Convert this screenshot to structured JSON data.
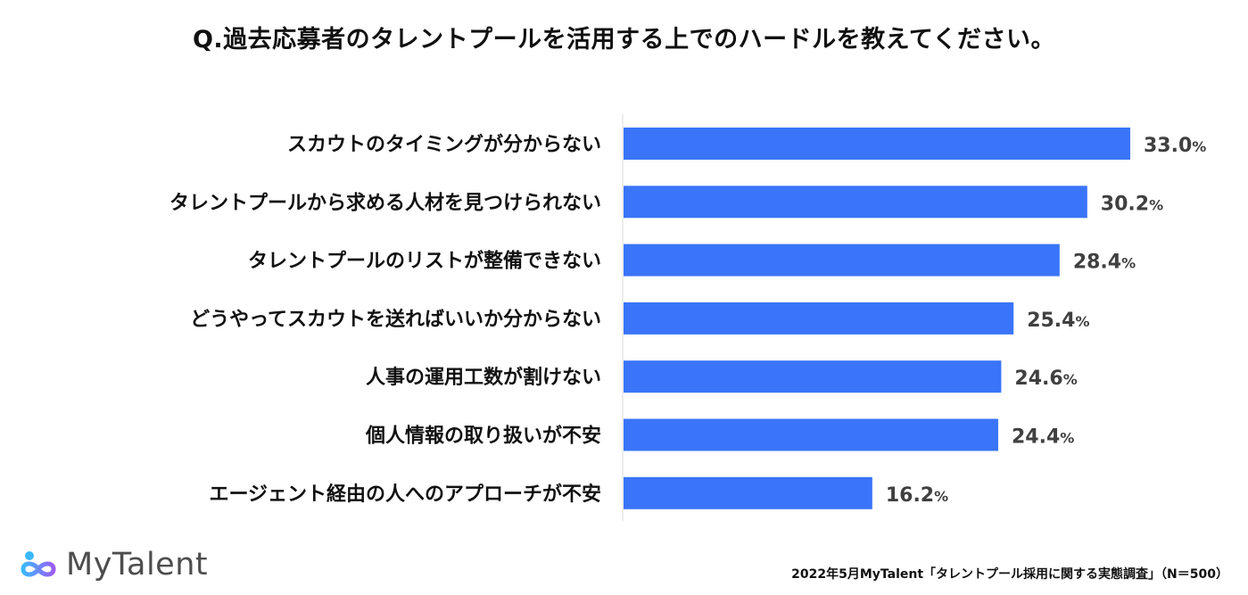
{
  "title": "Q.過去応募者のタレントプールを活用する上でのハードルを教えてください。",
  "chart_data": {
    "type": "bar",
    "orientation": "horizontal",
    "categories": [
      "スカウトのタイミングが分からない",
      "タレントプールから求める人材を見つけられない",
      "タレントプールのリストが整備できない",
      "どうやってスカウトを送ればいいか分からない",
      "人事の運用工数が割けない",
      "個人情報の取り扱いが不安",
      "エージェント経由の人へのアプローチが不安"
    ],
    "values": [
      33.0,
      30.2,
      28.4,
      25.4,
      24.6,
      24.4,
      16.2
    ],
    "value_labels": [
      "33.0",
      "30.2",
      "28.4",
      "25.4",
      "24.6",
      "24.4",
      "16.2"
    ],
    "unit": "%",
    "xlim": [
      0,
      40
    ],
    "grid": false,
    "legend": "none",
    "bar_color": "#3a74f8",
    "label_color": "#404040"
  },
  "logo": {
    "text": "MyTalent",
    "icon": "infinity-logo-icon"
  },
  "source": "2022年5月MyTalent「タレントプール採用に関する実態調査」（N＝500）"
}
